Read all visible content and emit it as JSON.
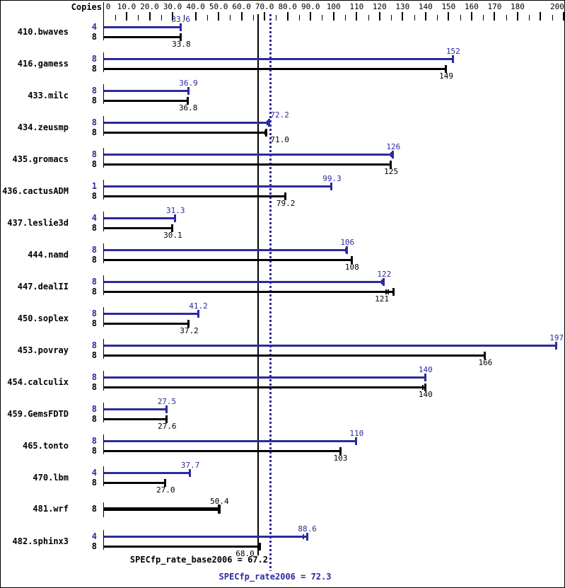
{
  "chart_data": {
    "type": "bar",
    "orientation": "horizontal",
    "copies_header": "Copies",
    "colors": {
      "peak": "#2b2b9e",
      "base": "#000000"
    },
    "x_axis": {
      "min": 0,
      "max": 200,
      "major_step": 10,
      "minor_step": 5,
      "tick_labels": [
        {
          "value": 0,
          "text": "0"
        },
        {
          "value": 10,
          "text": "10.0"
        },
        {
          "value": 20,
          "text": "20.0"
        },
        {
          "value": 30,
          "text": "30.0"
        },
        {
          "value": 40,
          "text": "40.0"
        },
        {
          "value": 50,
          "text": "50.0"
        },
        {
          "value": 60,
          "text": "60.0"
        },
        {
          "value": 70,
          "text": "70.0"
        },
        {
          "value": 80,
          "text": "80.0"
        },
        {
          "value": 90,
          "text": "90.0"
        },
        {
          "value": 100,
          "text": "100"
        },
        {
          "value": 110,
          "text": "110"
        },
        {
          "value": 120,
          "text": "120"
        },
        {
          "value": 130,
          "text": "130"
        },
        {
          "value": 140,
          "text": "140"
        },
        {
          "value": 150,
          "text": "150"
        },
        {
          "value": 160,
          "text": "160"
        },
        {
          "value": 170,
          "text": "170"
        },
        {
          "value": 180,
          "text": "180"
        },
        {
          "value": 200,
          "text": "200"
        }
      ]
    },
    "reference_lines": [
      {
        "id": "base",
        "text": "SPECfp_rate_base2006 = 67.2",
        "value": 67.2,
        "style": "solid",
        "color": "#000000"
      },
      {
        "id": "peak",
        "text": "SPECfp_rate2006 = 72.3",
        "value": 72.3,
        "style": "dotted",
        "color": "#2b2b9e"
      }
    ],
    "benchmarks": [
      {
        "name": "410.bwaves",
        "bars": [
          {
            "series": "peak",
            "copies": "4",
            "value": 33.6,
            "label": "33.6"
          },
          {
            "series": "base",
            "copies": "8",
            "value": 33.8,
            "label": "33.8"
          }
        ]
      },
      {
        "name": "416.gamess",
        "bars": [
          {
            "series": "peak",
            "copies": "8",
            "value": 152,
            "label": "152"
          },
          {
            "series": "base",
            "copies": "8",
            "value": 149,
            "label": "149"
          }
        ]
      },
      {
        "name": "433.milc",
        "bars": [
          {
            "series": "peak",
            "copies": "8",
            "value": 36.9,
            "label": "36.9"
          },
          {
            "series": "base",
            "copies": "8",
            "value": 36.8,
            "label": "36.8"
          }
        ]
      },
      {
        "name": "434.zeusmp",
        "bars": [
          {
            "series": "peak",
            "copies": "8",
            "value": 72.2,
            "label": "72.2",
            "label_at": 76.6,
            "marks": [
              71.3
            ]
          },
          {
            "series": "base",
            "copies": "8",
            "value": 71.0,
            "label": "71.0",
            "label_at": 76.6,
            "marks": [
              70.2
            ]
          }
        ]
      },
      {
        "name": "435.gromacs",
        "bars": [
          {
            "series": "peak",
            "copies": "8",
            "value": 126,
            "label": "126",
            "marks": [
              125.1
            ]
          },
          {
            "series": "base",
            "copies": "8",
            "value": 125,
            "label": "125"
          }
        ]
      },
      {
        "name": "436.cactusADM",
        "bars": [
          {
            "series": "peak",
            "copies": "1",
            "value": 99.3,
            "label": "99.3"
          },
          {
            "series": "base",
            "copies": "8",
            "value": 79.2,
            "label": "79.2"
          }
        ]
      },
      {
        "name": "437.leslie3d",
        "bars": [
          {
            "series": "peak",
            "copies": "4",
            "value": 31.3,
            "label": "31.3"
          },
          {
            "series": "base",
            "copies": "8",
            "value": 30.1,
            "label": "30.1"
          }
        ]
      },
      {
        "name": "444.namd",
        "bars": [
          {
            "series": "peak",
            "copies": "8",
            "value": 106,
            "label": "106",
            "marks": [
              105.3
            ]
          },
          {
            "series": "base",
            "copies": "8",
            "value": 108,
            "label": "108"
          }
        ]
      },
      {
        "name": "447.dealII",
        "bars": [
          {
            "series": "peak",
            "copies": "8",
            "value": 122,
            "label": "122",
            "marks": [
              120.9
            ]
          },
          {
            "series": "base",
            "copies": "8",
            "value": 121,
            "label": "121",
            "bar_end": 126.2,
            "marks": [
              122.8,
              123.7
            ]
          }
        ]
      },
      {
        "name": "450.soplex",
        "bars": [
          {
            "series": "peak",
            "copies": "8",
            "value": 41.2,
            "label": "41.2"
          },
          {
            "series": "base",
            "copies": "8",
            "value": 37.2,
            "label": "37.2",
            "marks": [
              36.6
            ]
          }
        ]
      },
      {
        "name": "453.povray",
        "bars": [
          {
            "series": "peak",
            "copies": "8",
            "value": 197,
            "label": "197"
          },
          {
            "series": "base",
            "copies": "8",
            "value": 166,
            "label": "166"
          }
        ]
      },
      {
        "name": "454.calculix",
        "bars": [
          {
            "series": "peak",
            "copies": "8",
            "value": 140,
            "label": "140"
          },
          {
            "series": "base",
            "copies": "8",
            "value": 140,
            "label": "140",
            "marks": [
              138.9
            ]
          }
        ]
      },
      {
        "name": "459.GemsFDTD",
        "bars": [
          {
            "series": "peak",
            "copies": "8",
            "value": 27.5,
            "label": "27.5"
          },
          {
            "series": "base",
            "copies": "8",
            "value": 27.6,
            "label": "27.6"
          }
        ]
      },
      {
        "name": "465.tonto",
        "bars": [
          {
            "series": "peak",
            "copies": "8",
            "value": 110,
            "label": "110"
          },
          {
            "series": "base",
            "copies": "8",
            "value": 103,
            "label": "103"
          }
        ]
      },
      {
        "name": "470.lbm",
        "bars": [
          {
            "series": "peak",
            "copies": "4",
            "value": 37.7,
            "label": "37.7"
          },
          {
            "series": "base",
            "copies": "8",
            "value": 27.0,
            "label": "27.0"
          }
        ]
      },
      {
        "name": "481.wrf",
        "bars": [
          {
            "series": "base",
            "copies": "8",
            "value": 50.4,
            "label": "50.4",
            "thick": true,
            "label_side": "above"
          }
        ]
      },
      {
        "name": "482.sphinx3",
        "bars": [
          {
            "series": "peak",
            "copies": "4",
            "value": 88.6,
            "label": "88.6",
            "marks": [
              86.8
            ]
          },
          {
            "series": "base",
            "copies": "8",
            "value": 68.0,
            "label": "68.0",
            "label_at": 61.5
          }
        ]
      }
    ]
  }
}
